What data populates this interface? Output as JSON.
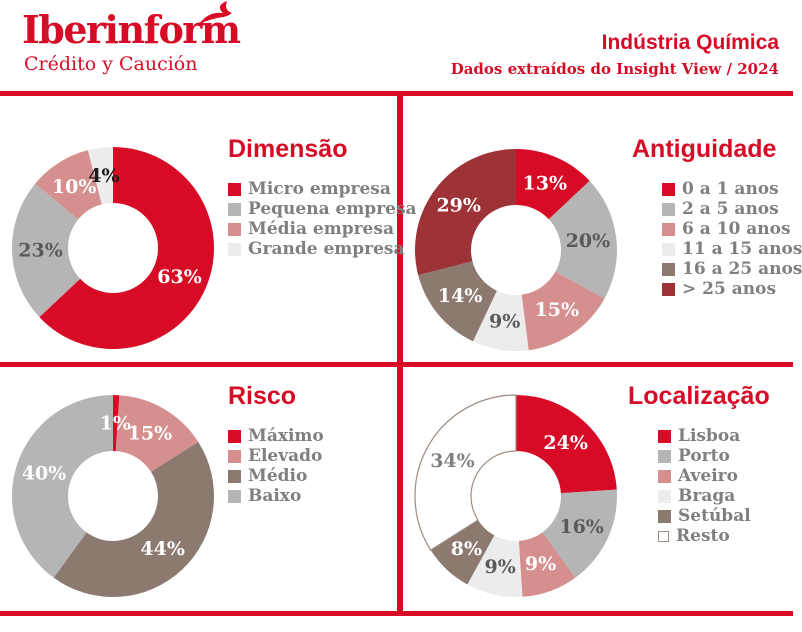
{
  "header": {
    "brand": "Iberinform",
    "brand_sub": "Crédito y Caución",
    "title": "Indústria Química",
    "subtitle": "Dados extraídos do Insight View / 2024"
  },
  "colors": {
    "brand_red": "#d80b26",
    "dark_red": "#9d3237",
    "pink": "#d68f8f",
    "gray": "#b5b5b5",
    "light_gray": "#ececec",
    "taupe": "#8c7a70",
    "legend_text": "#7f7f7f",
    "dark_label": "#595959"
  },
  "chart_data": [
    {
      "type": "pie",
      "subtype": "donut",
      "title": "Dimensão",
      "categories": [
        "Micro empresa",
        "Pequena empresa",
        "Média empresa",
        "Grande empresa"
      ],
      "values": [
        63,
        23,
        10,
        4
      ],
      "colors": [
        "#d80b26",
        "#b5b5b5",
        "#d68f8f",
        "#ececec"
      ],
      "label_colors": [
        "#ffffff",
        "#595959",
        "#ffffff",
        "#1a1a1a"
      ],
      "legend_position": "right",
      "start_angle": 0,
      "direction": "clockwise"
    },
    {
      "type": "pie",
      "subtype": "donut",
      "title": "Antiguidade",
      "categories": [
        "0 a 1 anos",
        "2 a 5 anos",
        "6 a 10 anos",
        "11 a 15 anos",
        "16 a 25 anos",
        "> 25 anos"
      ],
      "values": [
        13,
        20,
        15,
        9,
        14,
        29
      ],
      "colors": [
        "#d80b26",
        "#b5b5b5",
        "#d68f8f",
        "#ececec",
        "#8c7a70",
        "#9d3237"
      ],
      "label_colors": [
        "#ffffff",
        "#595959",
        "#ffffff",
        "#595959",
        "#ffffff",
        "#ffffff"
      ],
      "legend_position": "right",
      "start_angle": 0,
      "direction": "clockwise"
    },
    {
      "type": "pie",
      "subtype": "donut",
      "title": "Risco",
      "categories": [
        "Máximo",
        "Elevado",
        "Médio",
        "Baixo"
      ],
      "values": [
        1,
        15,
        44,
        40
      ],
      "colors": [
        "#d80b26",
        "#d68f8f",
        "#8c7a70",
        "#b5b5b5"
      ],
      "label_colors": [
        "#ffffff",
        "#ffffff",
        "#ffffff",
        "#ffffff"
      ],
      "legend_position": "right",
      "start_angle": 0,
      "direction": "clockwise"
    },
    {
      "type": "pie",
      "subtype": "donut",
      "title": "Localização",
      "categories": [
        "Lisboa",
        "Porto",
        "Aveiro",
        "Braga",
        "Setúbal",
        "Resto"
      ],
      "values": [
        24,
        16,
        9,
        9,
        8,
        34
      ],
      "colors": [
        "#d80b26",
        "#b5b5b5",
        "#d68f8f",
        "#ececec",
        "#8c7a70",
        "#ffffff"
      ],
      "label_colors": [
        "#ffffff",
        "#595959",
        "#ffffff",
        "#595959",
        "#ffffff",
        "#808080"
      ],
      "stroke_slices": [
        null,
        null,
        null,
        null,
        null,
        "#9b8c82"
      ],
      "swatch_borders": [
        null,
        null,
        null,
        null,
        null,
        "#9b8c82"
      ],
      "legend_position": "right",
      "start_angle": 0,
      "direction": "clockwise"
    }
  ]
}
